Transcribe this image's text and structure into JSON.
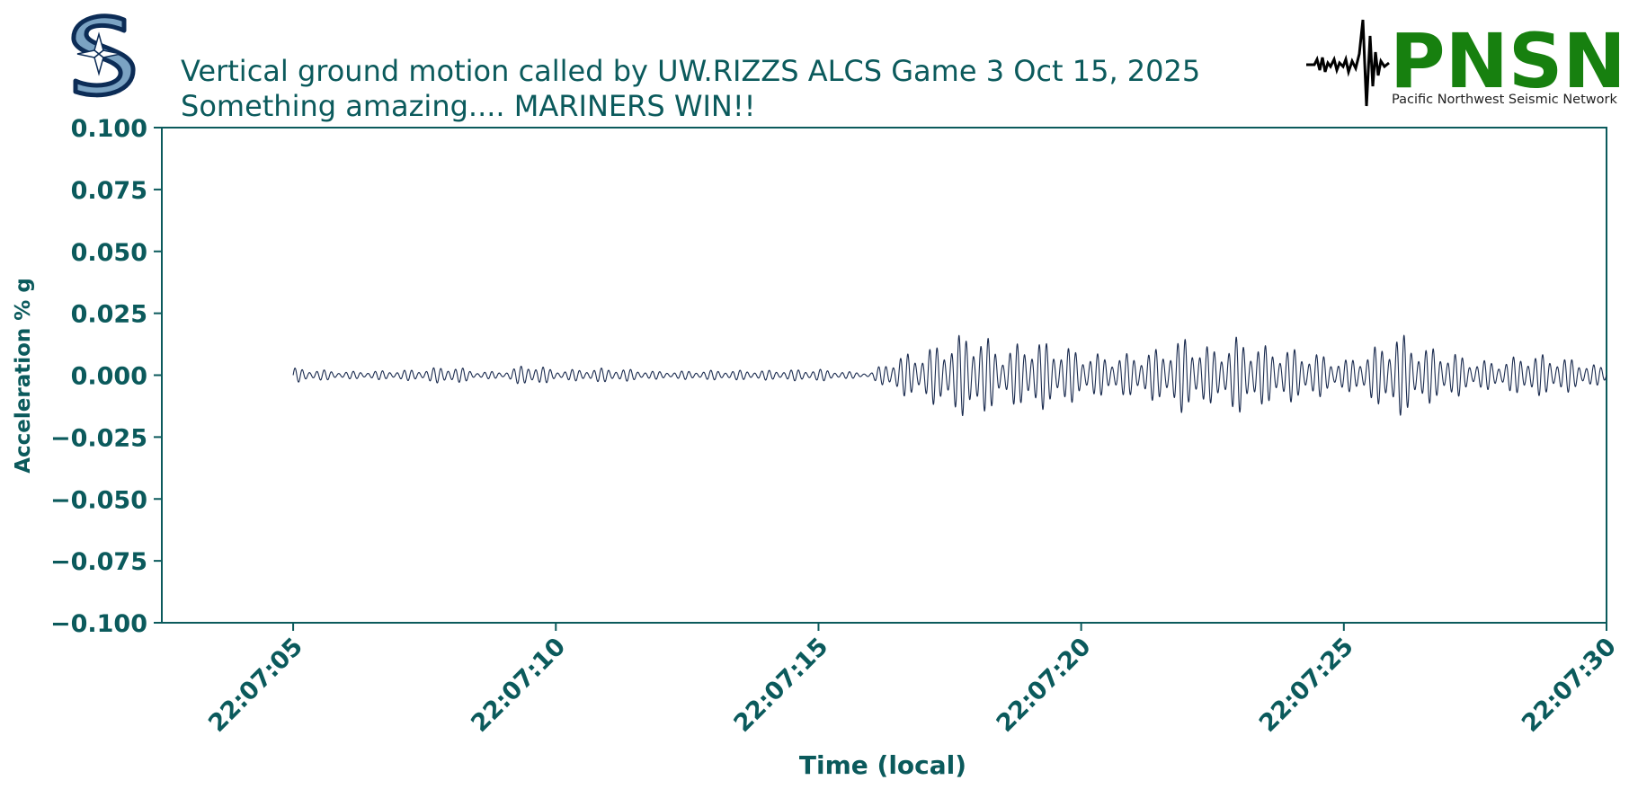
{
  "header": {
    "title_line1": "Vertical ground motion called by UW.RIZZS   ALCS Game 3 Oct 15, 2025",
    "title_line2": "Something amazing.... MARINERS WIN!!"
  },
  "logos": {
    "mariners": {
      "icon": "mariners-compass-s-logo",
      "colors": {
        "navy": "#0c2c56",
        "teal": "#005c5c",
        "silver": "#c4ced4"
      }
    },
    "pnsn": {
      "name": "PNSN",
      "subtitle": "Pacific Northwest Seismic Network",
      "icon": "seismogram-icon",
      "color": "#17800f"
    }
  },
  "colors": {
    "text": "#0b5a5c",
    "axes": "#0b5a5c",
    "trace": "#1a2b4f"
  },
  "chart_data": {
    "type": "line",
    "xlabel": "Time (local)",
    "ylabel": "Acceleration % g",
    "x_range": [
      "22:07:05",
      "22:07:30"
    ],
    "ylim": [
      -0.1,
      0.1
    ],
    "yticks": [
      "0.100",
      "0.075",
      "0.050",
      "0.025",
      "0.000",
      "−0.025",
      "−0.050",
      "−0.075",
      "−0.100"
    ],
    "xticks": [
      "22:07:05",
      "22:07:10",
      "22:07:15",
      "22:07:20",
      "22:07:25",
      "22:07:30"
    ],
    "grid": false,
    "series": [
      {
        "color": "#1a2b4f",
        "envelope": {
          "times": [
            "22:07:05",
            "22:07:06",
            "22:07:07",
            "22:07:07.5",
            "22:07:08",
            "22:07:08.5",
            "22:07:09",
            "22:07:09.5",
            "22:07:10",
            "22:07:11",
            "22:07:12",
            "22:07:13",
            "22:07:14",
            "22:07:15",
            "22:07:15.5",
            "22:07:16",
            "22:07:16.3",
            "22:07:16.7",
            "22:07:17",
            "22:07:17.5",
            "22:07:18",
            "22:07:18.5",
            "22:07:19",
            "22:07:19.5",
            "22:07:20",
            "22:07:20.5",
            "22:07:21",
            "22:07:21.5",
            "22:07:22",
            "22:07:22.5",
            "22:07:23",
            "22:07:23.5",
            "22:07:24",
            "22:07:24.5",
            "22:07:25",
            "22:07:25.5",
            "22:07:26",
            "22:07:26.5",
            "22:07:27",
            "22:07:27.5",
            "22:07:28",
            "22:07:28.5",
            "22:07:29",
            "22:07:29.5",
            "22:07:30"
          ],
          "amplitude": [
            0.003,
            0.0015,
            0.002,
            0.0025,
            0.004,
            0.0015,
            0.0015,
            0.005,
            0.002,
            0.003,
            0.0015,
            0.002,
            0.002,
            0.0025,
            0.0015,
            0.001,
            0.006,
            0.009,
            0.01,
            0.015,
            0.019,
            0.01,
            0.015,
            0.013,
            0.01,
            0.008,
            0.009,
            0.011,
            0.016,
            0.011,
            0.016,
            0.012,
            0.011,
            0.009,
            0.006,
            0.01,
            0.018,
            0.012,
            0.01,
            0.006,
            0.006,
            0.009,
            0.008,
            0.006,
            0.003
          ]
        }
      }
    ]
  }
}
